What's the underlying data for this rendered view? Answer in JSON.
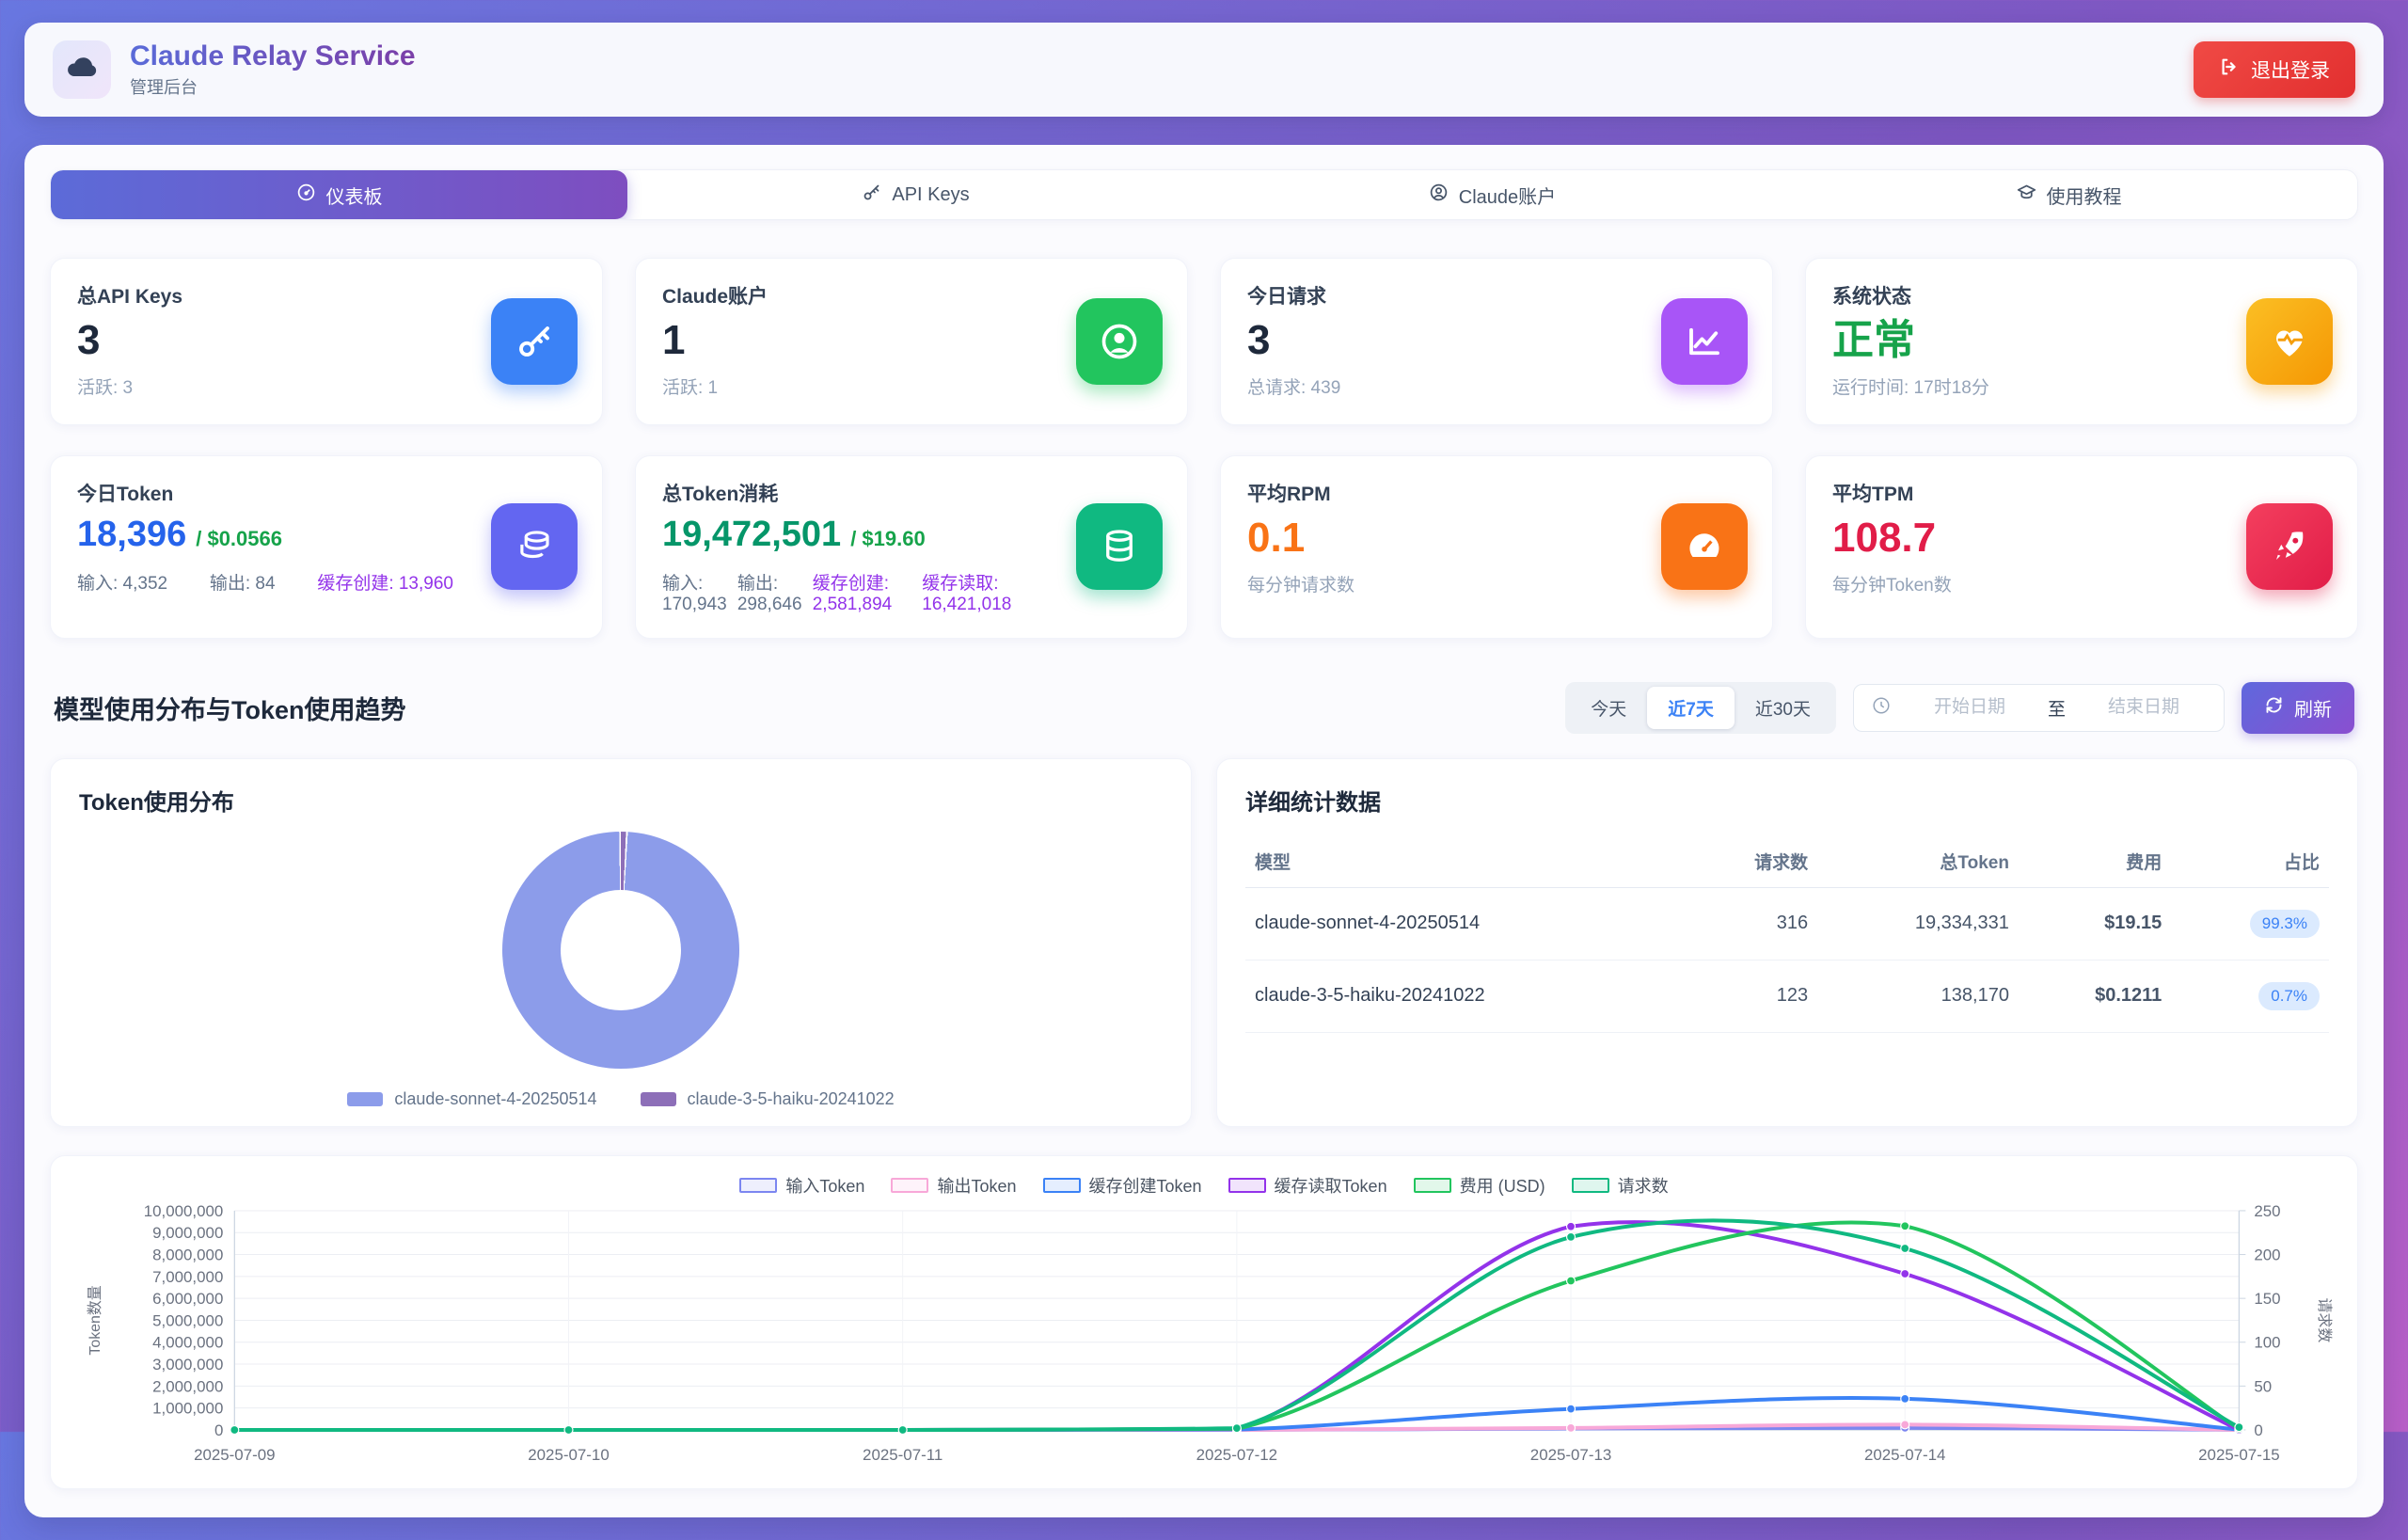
{
  "header": {
    "title": "Claude Relay Service",
    "subtitle": "管理后台",
    "logout_label": "退出登录"
  },
  "tabs": [
    {
      "label": "仪表板",
      "icon": "gauge-icon",
      "active": true
    },
    {
      "label": "API Keys",
      "icon": "key-icon",
      "active": false
    },
    {
      "label": "Claude账户",
      "icon": "user-icon",
      "active": false
    },
    {
      "label": "使用教程",
      "icon": "tutorial-icon",
      "active": false
    }
  ],
  "stats_row1": [
    {
      "label": "总API Keys",
      "value": "3",
      "sub": "活跃: 3",
      "icon": "key-icon",
      "icon_color": "#3b82f6"
    },
    {
      "label": "Claude账户",
      "value": "1",
      "sub": "活跃: 1",
      "icon": "user-icon",
      "icon_color": "#22c55e"
    },
    {
      "label": "今日请求",
      "value": "3",
      "sub": "总请求: 439",
      "icon": "chart-line-icon",
      "icon_color": "#a855f7"
    },
    {
      "label": "系统状态",
      "value": "正常",
      "value_color": "#16a34a",
      "sub": "运行时间: 17时18分",
      "icon": "heart-pulse-icon",
      "icon_color": "#f59e0b"
    }
  ],
  "stats_row2": [
    {
      "label": "今日Token",
      "value": "18,396",
      "cost": "/ $0.0566",
      "details": [
        "输入: 4,352",
        "输出: 84",
        "缓存创建: 13,960"
      ],
      "icon": "coins-icon",
      "icon_color": "#6366f1"
    },
    {
      "label": "总Token消耗",
      "value": "19,472,501",
      "cost": "/ $19.60",
      "details": [
        "输入: 170,943",
        "输出: 298,646",
        "缓存创建: 2,581,894",
        "缓存读取: 16,421,018"
      ],
      "icon": "database-icon",
      "icon_color": "#10b981"
    },
    {
      "label": "平均RPM",
      "value": "0.1",
      "sub": "每分钟请求数",
      "icon": "tachometer-icon",
      "icon_color": "#f97316"
    },
    {
      "label": "平均TPM",
      "value": "108.7",
      "sub": "每分钟Token数",
      "icon": "rocket-icon",
      "icon_color": "#e8315f"
    }
  ],
  "section": {
    "title": "模型使用分布与Token使用趋势",
    "filters": [
      "今天",
      "近7天",
      "近30天"
    ],
    "active_filter_index": 1,
    "date_start_placeholder": "开始日期",
    "date_separator": "至",
    "date_end_placeholder": "结束日期",
    "refresh_label": "刷新"
  },
  "donut_card": {
    "title": "Token使用分布",
    "legend": [
      {
        "label": "claude-sonnet-4-20250514",
        "color": "#8c9cea"
      },
      {
        "label": "claude-3-5-haiku-20241022",
        "color": "#8d6fb8"
      }
    ]
  },
  "table_card": {
    "title": "详细统计数据",
    "headers": [
      "模型",
      "请求数",
      "总Token",
      "费用",
      "占比"
    ],
    "rows": [
      [
        "claude-sonnet-4-20250514",
        "316",
        "19,334,331",
        "$19.15",
        "99.3%"
      ],
      [
        "claude-3-5-haiku-20241022",
        "123",
        "138,170",
        "$0.1211",
        "0.7%"
      ]
    ]
  },
  "chart_data": [
    {
      "type": "pie",
      "title": "Token使用分布",
      "labels": [
        "claude-sonnet-4-20250514",
        "claude-3-5-haiku-20241022"
      ],
      "values": [
        99.3,
        0.7
      ],
      "unit": "%",
      "colors": [
        "#8c9cea",
        "#8d6fb8"
      ],
      "legend_position": "bottom"
    },
    {
      "type": "line",
      "x": [
        "2025-07-09",
        "2025-07-10",
        "2025-07-11",
        "2025-07-12",
        "2025-07-13",
        "2025-07-14",
        "2025-07-15"
      ],
      "ylabel_left": "Token数量",
      "ylabel_right": "请求数",
      "ylim_left": [
        0,
        10000000
      ],
      "ytick_step_left": 1000000,
      "ylim_right": [
        0,
        250
      ],
      "ytick_step_right": 50,
      "grid": true,
      "legend_position": "top",
      "series": [
        {
          "name": "输入Token",
          "axis": "left",
          "color": "#7c86f0",
          "scale_max": 10000000,
          "values": [
            0,
            0,
            0,
            1000,
            60000,
            90000,
            4352
          ]
        },
        {
          "name": "输出Token",
          "axis": "left",
          "color": "#f8a8d8",
          "scale_max": 10000000,
          "values": [
            0,
            0,
            0,
            500,
            90000,
            240000,
            84
          ]
        },
        {
          "name": "缓存创建Token",
          "axis": "left",
          "color": "#3b82f6",
          "scale_max": 10000000,
          "values": [
            0,
            0,
            0,
            20000,
            960000,
            1420000,
            13960
          ]
        },
        {
          "name": "缓存读取Token",
          "axis": "left",
          "color": "#9333ea",
          "scale_max": 10000000,
          "values": [
            0,
            0,
            0,
            40000,
            9280000,
            7120000,
            0
          ]
        },
        {
          "name": "费用 (USD)",
          "axis": "hidden",
          "color": "#22c55e",
          "scale_max": 10,
          "values": [
            0,
            0,
            0,
            0.05,
            6.8,
            9.3,
            0.06
          ]
        },
        {
          "name": "请求数",
          "axis": "right",
          "color": "#10b981",
          "scale_max": 250,
          "values": [
            0,
            0,
            0,
            2,
            220,
            207,
            3
          ]
        }
      ]
    }
  ],
  "colors": {
    "accent_gradient_start": "#5c6bd8",
    "accent_gradient_end": "#7e4ec0",
    "logout_red": "#e8403e",
    "status_ok_green": "#16a34a",
    "today_token_blue": "#2563eb",
    "total_token_green": "#059669",
    "rpm_orange": "#f97316",
    "tpm_red": "#e11d48",
    "cache_purple": "#9333ea",
    "badge_blue_bg": "#dbeafe",
    "badge_blue_text": "#3b82f6"
  }
}
